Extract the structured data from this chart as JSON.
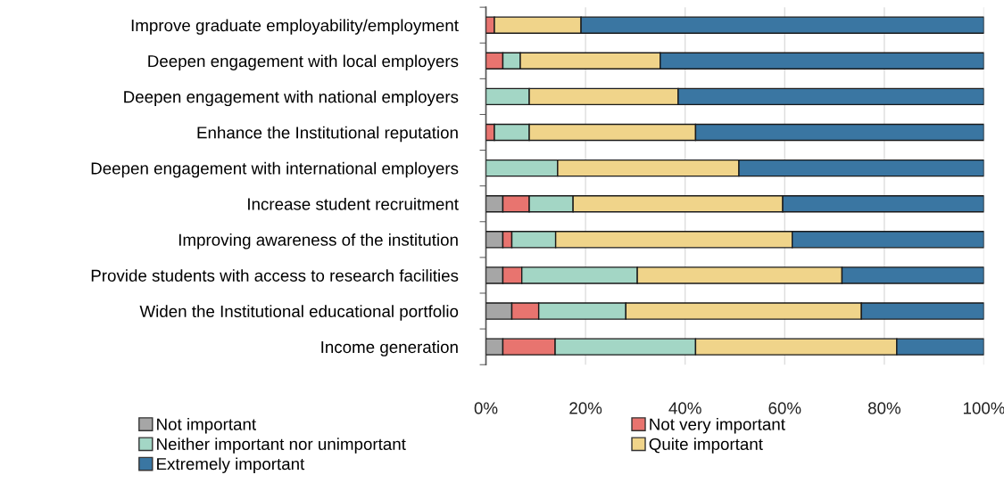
{
  "chart_data": {
    "type": "bar",
    "orientation": "horizontal",
    "stacked": true,
    "categories": [
      "Improve graduate employability/employment",
      "Deepen engagement with local employers",
      "Deepen engagement with national employers",
      "Enhance the Institutional reputation",
      "Deepen engagement with international employers",
      "Increase student recruitment",
      "Improving awareness of the institution",
      "Provide students with access to research facilities",
      "Widen the Institutional educational portfolio",
      "Income generation"
    ],
    "series": [
      {
        "name": "Not important",
        "color": "#a6a6a6",
        "values": [
          0,
          0,
          0,
          0,
          0,
          3.4,
          3.4,
          3.4,
          5.2,
          3.4
        ]
      },
      {
        "name": "Not very important",
        "color": "#e8746f",
        "values": [
          1.7,
          3.4,
          0,
          1.7,
          0,
          5.3,
          1.8,
          3.8,
          5.4,
          10.5
        ]
      },
      {
        "name": "Neither important nor unimportant",
        "color": "#a3d6c5",
        "values": [
          0,
          3.5,
          8.7,
          7.0,
          14.4,
          8.8,
          8.8,
          23.2,
          17.5,
          28.2
        ]
      },
      {
        "name": "Quite important",
        "color": "#f0d48a",
        "values": [
          17.4,
          28.1,
          29.9,
          33.4,
          36.4,
          42.1,
          47.5,
          41.1,
          47.3,
          40.4
        ]
      },
      {
        "name": "Extremely important",
        "color": "#3a76a2",
        "values": [
          80.9,
          65.0,
          61.4,
          57.9,
          49.2,
          40.4,
          38.5,
          28.5,
          24.6,
          17.5
        ]
      }
    ],
    "xlim": [
      0,
      100
    ],
    "xticks": [
      {
        "value": 0,
        "label": "0%"
      },
      {
        "value": 20,
        "label": "20%"
      },
      {
        "value": 40,
        "label": "40%"
      },
      {
        "value": 60,
        "label": "60%"
      },
      {
        "value": 80,
        "label": "80%"
      },
      {
        "value": 100,
        "label": "100%"
      }
    ],
    "grid": "x",
    "legend": "bottom"
  }
}
